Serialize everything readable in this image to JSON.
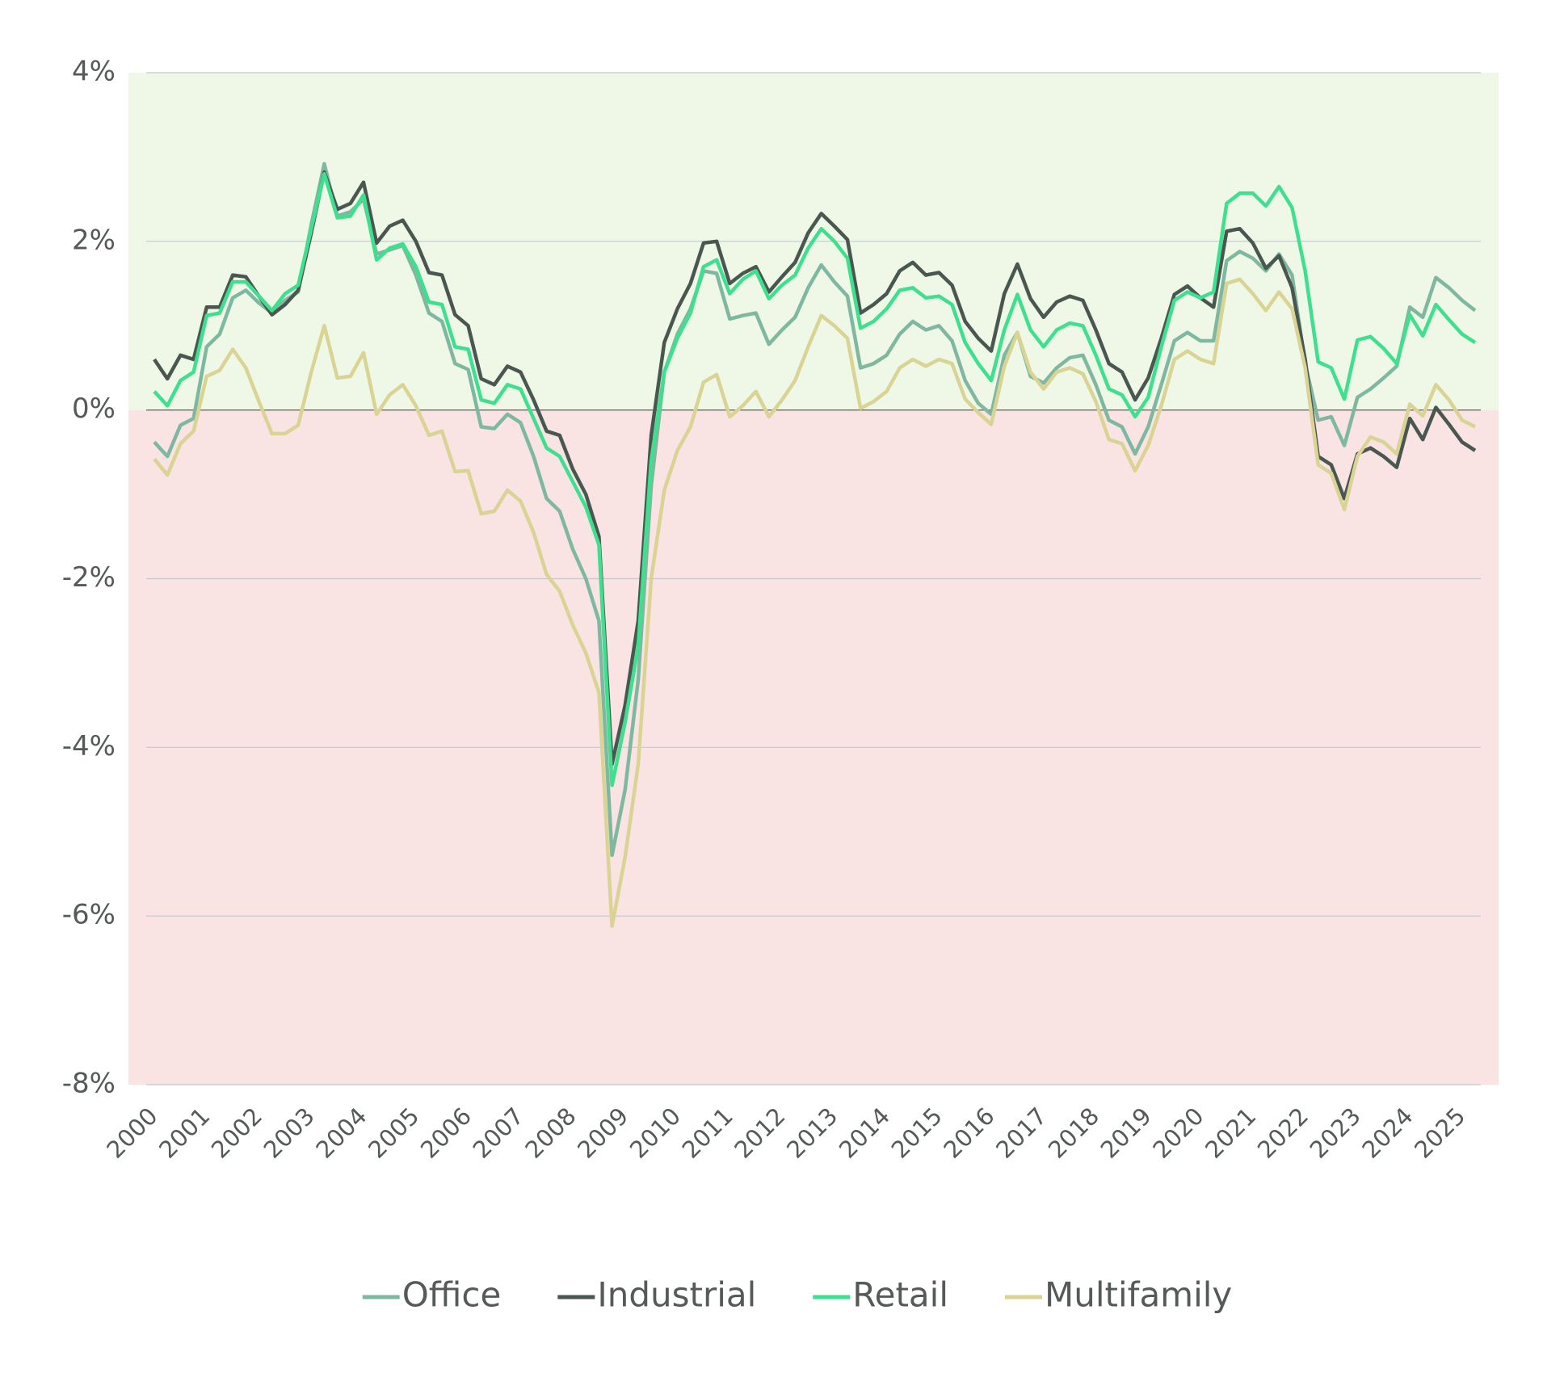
{
  "chart_data": {
    "type": "line",
    "categories": [
      "2000",
      null,
      null,
      null,
      "2001",
      null,
      null,
      null,
      "2002",
      null,
      null,
      null,
      "2003",
      null,
      null,
      null,
      "2004",
      null,
      null,
      null,
      "2005",
      null,
      null,
      null,
      "2006",
      null,
      null,
      null,
      "2007",
      null,
      null,
      null,
      "2008",
      null,
      null,
      null,
      "2009",
      null,
      null,
      null,
      "2010",
      null,
      null,
      null,
      "2011",
      null,
      null,
      null,
      "2012",
      null,
      null,
      null,
      "2013",
      null,
      null,
      null,
      "2014",
      null,
      null,
      null,
      "2015",
      null,
      null,
      null,
      "2016",
      null,
      null,
      null,
      "2017",
      null,
      null,
      null,
      "2018",
      null,
      null,
      null,
      "2019",
      null,
      null,
      null,
      "2020",
      null,
      null,
      null,
      "2021",
      null,
      null,
      null,
      "2022",
      null,
      null,
      null,
      "2023",
      null,
      null,
      null,
      "2024",
      null,
      null,
      null,
      "2025",
      null
    ],
    "series": [
      {
        "name": "Office",
        "color": "#7fb8a0",
        "values": [
          -0.38,
          -0.55,
          -0.18,
          -0.1,
          0.75,
          0.9,
          1.33,
          1.42,
          1.27,
          1.15,
          1.3,
          1.4,
          2.2,
          2.92,
          2.3,
          2.35,
          2.5,
          1.85,
          1.9,
          1.95,
          1.6,
          1.15,
          1.05,
          0.55,
          0.48,
          -0.2,
          -0.22,
          -0.05,
          -0.15,
          -0.55,
          -1.05,
          -1.2,
          -1.65,
          -2.0,
          -2.5,
          -5.28,
          -4.5,
          -3.2,
          -0.9,
          0.45,
          0.9,
          1.2,
          1.65,
          1.62,
          1.08,
          1.12,
          1.15,
          0.78,
          0.95,
          1.1,
          1.45,
          1.72,
          1.52,
          1.35,
          0.5,
          0.55,
          0.65,
          0.9,
          1.05,
          0.95,
          1.0,
          0.82,
          0.35,
          0.08,
          -0.05,
          0.65,
          0.92,
          0.4,
          0.32,
          0.5,
          0.62,
          0.65,
          0.3,
          -0.12,
          -0.2,
          -0.52,
          -0.2,
          0.3,
          0.82,
          0.92,
          0.82,
          0.82,
          1.77,
          1.88,
          1.8,
          1.65,
          1.85,
          1.6,
          0.55,
          -0.12,
          -0.08,
          -0.42,
          0.15,
          0.25,
          0.38,
          0.52,
          1.22,
          1.1,
          1.57,
          1.45,
          1.3,
          1.18
        ]
      },
      {
        "name": "Industrial",
        "color": "#4a5650",
        "values": [
          0.6,
          0.37,
          0.65,
          0.6,
          1.22,
          1.22,
          1.6,
          1.58,
          1.35,
          1.13,
          1.25,
          1.42,
          2.1,
          2.82,
          2.38,
          2.45,
          2.7,
          1.98,
          2.18,
          2.25,
          2.0,
          1.63,
          1.6,
          1.13,
          1.0,
          0.37,
          0.3,
          0.52,
          0.45,
          0.12,
          -0.25,
          -0.3,
          -0.7,
          -1.0,
          -1.5,
          -4.2,
          -3.5,
          -2.5,
          -0.3,
          0.8,
          1.2,
          1.5,
          1.98,
          2.0,
          1.5,
          1.62,
          1.7,
          1.4,
          1.58,
          1.75,
          2.1,
          2.33,
          2.18,
          2.02,
          1.15,
          1.25,
          1.38,
          1.65,
          1.75,
          1.6,
          1.63,
          1.48,
          1.05,
          0.85,
          0.7,
          1.38,
          1.73,
          1.32,
          1.1,
          1.28,
          1.35,
          1.3,
          0.95,
          0.55,
          0.45,
          0.12,
          0.38,
          0.85,
          1.37,
          1.47,
          1.33,
          1.22,
          2.12,
          2.15,
          1.98,
          1.68,
          1.83,
          1.45,
          0.6,
          -0.55,
          -0.65,
          -1.05,
          -0.52,
          -0.45,
          -0.55,
          -0.68,
          -0.1,
          -0.35,
          0.03,
          -0.17,
          -0.38,
          -0.48
        ]
      },
      {
        "name": "Retail",
        "color": "#3ee08f",
        "values": [
          0.22,
          0.05,
          0.35,
          0.45,
          1.12,
          1.15,
          1.52,
          1.52,
          1.35,
          1.18,
          1.38,
          1.48,
          2.15,
          2.8,
          2.28,
          2.3,
          2.55,
          1.78,
          1.92,
          1.97,
          1.7,
          1.28,
          1.25,
          0.75,
          0.72,
          0.12,
          0.08,
          0.3,
          0.25,
          -0.1,
          -0.45,
          -0.55,
          -0.85,
          -1.15,
          -1.6,
          -4.45,
          -3.7,
          -2.8,
          -0.6,
          0.45,
          0.85,
          1.15,
          1.7,
          1.78,
          1.38,
          1.55,
          1.65,
          1.32,
          1.48,
          1.6,
          1.92,
          2.15,
          2.0,
          1.8,
          0.97,
          1.05,
          1.2,
          1.42,
          1.45,
          1.33,
          1.35,
          1.25,
          0.8,
          0.55,
          0.35,
          0.95,
          1.37,
          0.95,
          0.75,
          0.95,
          1.03,
          1.0,
          0.65,
          0.25,
          0.18,
          -0.08,
          0.15,
          0.75,
          1.3,
          1.4,
          1.33,
          1.4,
          2.45,
          2.57,
          2.57,
          2.42,
          2.65,
          2.4,
          1.65,
          0.57,
          0.5,
          0.13,
          0.83,
          0.87,
          0.73,
          0.55,
          1.13,
          0.88,
          1.25,
          1.07,
          0.9,
          0.8
        ]
      },
      {
        "name": "Multifamily",
        "color": "#d9d494",
        "values": [
          -0.58,
          -0.77,
          -0.4,
          -0.25,
          0.4,
          0.47,
          0.72,
          0.5,
          0.1,
          -0.28,
          -0.28,
          -0.18,
          0.45,
          1.0,
          0.38,
          0.4,
          0.68,
          -0.05,
          0.18,
          0.3,
          0.05,
          -0.3,
          -0.25,
          -0.73,
          -0.72,
          -1.23,
          -1.2,
          -0.95,
          -1.08,
          -1.45,
          -1.95,
          -2.15,
          -2.55,
          -2.88,
          -3.35,
          -6.12,
          -5.3,
          -4.2,
          -2.0,
          -0.95,
          -0.48,
          -0.2,
          0.33,
          0.42,
          -0.08,
          0.05,
          0.22,
          -0.08,
          0.12,
          0.35,
          0.75,
          1.12,
          1.0,
          0.85,
          0.02,
          0.1,
          0.22,
          0.5,
          0.6,
          0.52,
          0.6,
          0.55,
          0.13,
          -0.03,
          -0.17,
          0.52,
          0.92,
          0.45,
          0.25,
          0.45,
          0.5,
          0.43,
          0.1,
          -0.35,
          -0.4,
          -0.72,
          -0.42,
          0.05,
          0.6,
          0.7,
          0.6,
          0.55,
          1.5,
          1.55,
          1.38,
          1.18,
          1.4,
          1.2,
          0.5,
          -0.65,
          -0.75,
          -1.18,
          -0.55,
          -0.32,
          -0.38,
          -0.52,
          0.07,
          -0.07,
          0.3,
          0.12,
          -0.12,
          -0.2
        ]
      }
    ],
    "ylim": [
      -8,
      4
    ],
    "yticks": [
      {
        "value": -8,
        "label": "-8%"
      },
      {
        "value": -6,
        "label": "-6%"
      },
      {
        "value": -4,
        "label": "-4%"
      },
      {
        "value": -2,
        "label": "-2%"
      },
      {
        "value": 0,
        "label": "0%"
      },
      {
        "value": 2,
        "label": "2%"
      },
      {
        "value": 4,
        "label": "4%"
      }
    ],
    "grid": true,
    "positive_fill": "#eff8e6",
    "negative_fill": "#f9e3e3",
    "legend": "bottom"
  }
}
